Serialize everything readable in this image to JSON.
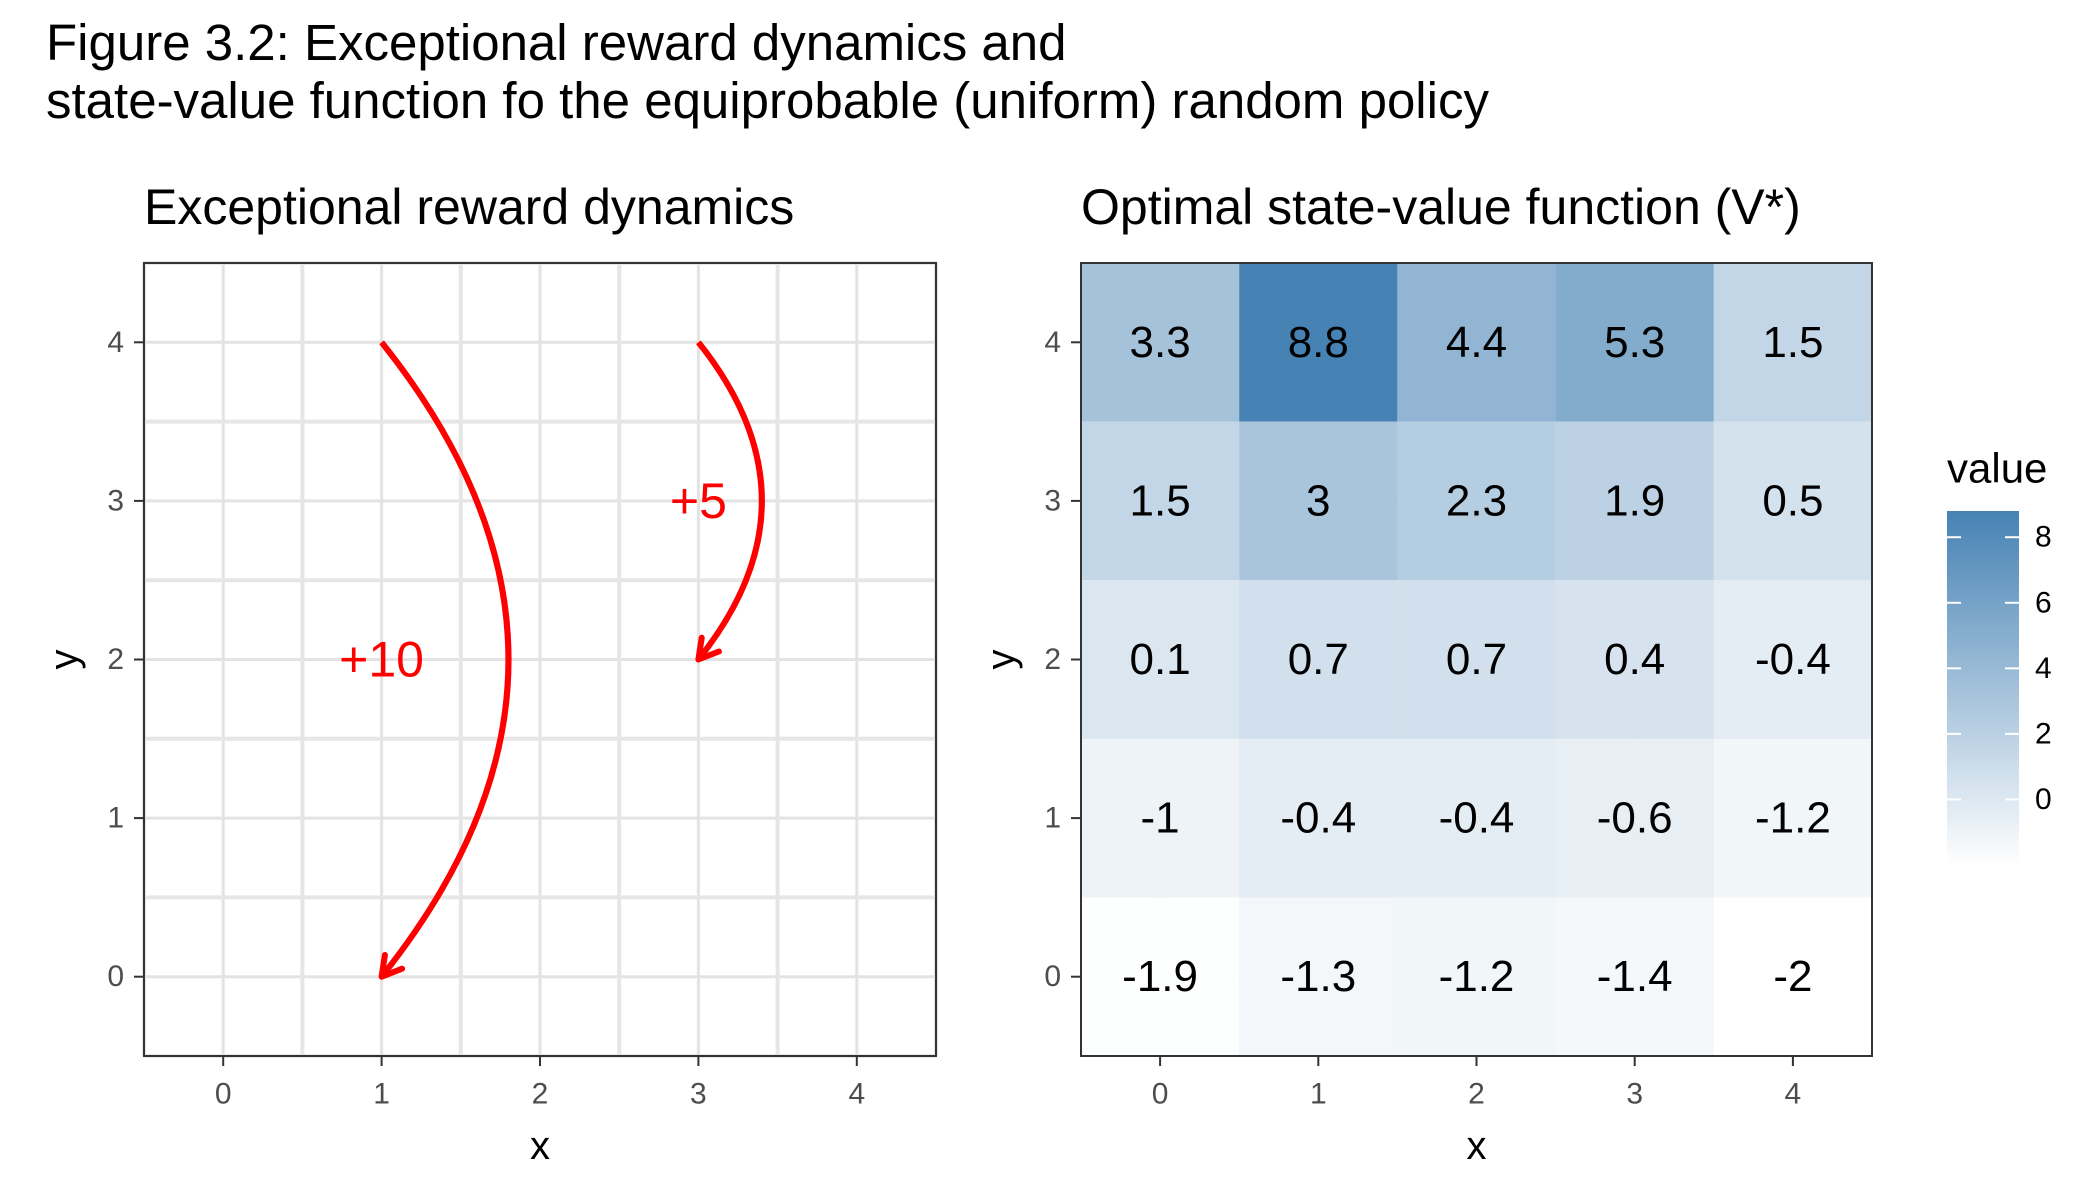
{
  "figure": {
    "title_line1": "Figure 3.2: Exceptional reward dynamics and",
    "title_line2": "state-value function fo the equiprobable (uniform) random policy"
  },
  "chart_data": [
    {
      "type": "scatter",
      "title": "Exceptional reward dynamics",
      "xlabel": "x",
      "ylabel": "y",
      "xlim": [
        -0.5,
        4.5
      ],
      "ylim": [
        -0.5,
        4.5
      ],
      "x_ticks": [
        0,
        1,
        2,
        3,
        4
      ],
      "y_ticks": [
        0,
        1,
        2,
        3,
        4
      ],
      "grid": true,
      "cell_boundaries": [
        -0.5,
        0.5,
        1.5,
        2.5,
        3.5,
        4.5
      ],
      "annotations": [
        {
          "label": "+10",
          "from": [
            1,
            4
          ],
          "to": [
            1,
            0
          ],
          "color": "#ff0000",
          "curvature": "right"
        },
        {
          "label": "+5",
          "from": [
            3,
            4
          ],
          "to": [
            3,
            2
          ],
          "color": "#ff0000",
          "curvature": "right"
        }
      ]
    },
    {
      "type": "heatmap",
      "title": "Optimal state-value function (V*)",
      "xlabel": "x",
      "ylabel": "y",
      "x": [
        0,
        1,
        2,
        3,
        4
      ],
      "y": [
        4,
        3,
        2,
        1,
        0
      ],
      "values": [
        [
          3.3,
          8.8,
          4.4,
          5.3,
          1.5
        ],
        [
          1.5,
          3,
          2.3,
          1.9,
          0.5
        ],
        [
          0.1,
          0.7,
          0.7,
          0.4,
          -0.4
        ],
        [
          -1,
          -0.4,
          -0.4,
          -0.6,
          -1.2
        ],
        [
          -1.9,
          -1.3,
          -1.2,
          -1.4,
          -2
        ]
      ],
      "labels": [
        [
          "3.3",
          "8.8",
          "4.4",
          "5.3",
          "1.5"
        ],
        [
          "1.5",
          "3",
          "2.3",
          "1.9",
          "0.5"
        ],
        [
          "0.1",
          "0.7",
          "0.7",
          "0.4",
          "-0.4"
        ],
        [
          "-1",
          "-0.4",
          "-0.4",
          "-0.6",
          "-1.2"
        ],
        [
          "-1.9",
          "-1.3",
          "-1.2",
          "-1.4",
          "-2"
        ]
      ],
      "xlim": [
        -0.5,
        4.5
      ],
      "ylim": [
        -0.5,
        4.5
      ],
      "x_ticks": [
        0,
        1,
        2,
        3,
        4
      ],
      "y_ticks": [
        0,
        1,
        2,
        3,
        4
      ],
      "grid": true,
      "legend": {
        "title": "value",
        "position": "right",
        "ticks": [
          0,
          2,
          4,
          6,
          8
        ],
        "range": [
          -2,
          8.8
        ],
        "color_low": "#ffffff",
        "color_high": "#4682b4"
      }
    }
  ]
}
